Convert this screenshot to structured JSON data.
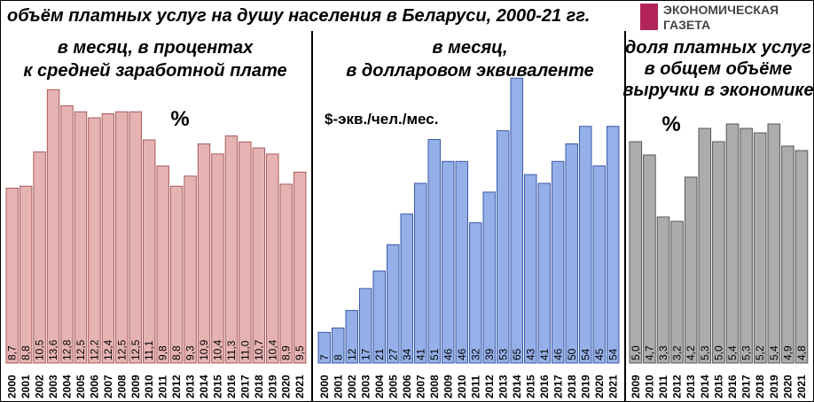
{
  "title": "объём платных услуг на душу населения в Беларуси, 2000-21 гг.",
  "logo": [
    "ЭКОНОМИЧЕСКАЯ",
    "ГАЗЕТА"
  ],
  "chart_data": [
    {
      "type": "bar",
      "subtitle": [
        "в месяц, в процентах",
        "к средней заработной плате"
      ],
      "unit": "%",
      "color": "#e6b3b3",
      "edge": "#a85a5a",
      "categories": [
        "2000",
        "2001",
        "2002",
        "2003",
        "2004",
        "2005",
        "2006",
        "2007",
        "2008",
        "2009",
        "2010",
        "2011",
        "2012",
        "2013",
        "2014",
        "2015",
        "2016",
        "2017",
        "2018",
        "2019",
        "2020",
        "2021"
      ],
      "values": [
        8.7,
        8.8,
        10.5,
        13.6,
        12.8,
        12.5,
        12.2,
        12.4,
        12.5,
        12.5,
        11.1,
        9.8,
        8.8,
        9.3,
        10.9,
        10.4,
        11.3,
        11.0,
        10.7,
        10.4,
        8.9,
        9.5
      ],
      "value_labels": [
        "8,7",
        "8,8",
        "10,5",
        "13,6",
        "12,8",
        "12,5",
        "12,2",
        "12,4",
        "12,5",
        "12,5",
        "11,1",
        "9,8",
        "8,8",
        "9,3",
        "10,9",
        "10,4",
        "11,3",
        "11,0",
        "10,7",
        "10,4",
        "8,9",
        "9,5"
      ]
    },
    {
      "type": "bar",
      "subtitle": [
        "в месяц,",
        "в долларовом эквиваленте"
      ],
      "unit": "$-экв./чел./мес.",
      "color": "#95b0e8",
      "edge": "#3a5aa8",
      "categories": [
        "2000",
        "2001",
        "2002",
        "2003",
        "2004",
        "2005",
        "2006",
        "2007",
        "2008",
        "2009",
        "2010",
        "2011",
        "2012",
        "2013",
        "2014",
        "2015",
        "2016",
        "2017",
        "2018",
        "2019",
        "2020",
        "2021"
      ],
      "values": [
        7,
        8,
        12,
        17,
        21,
        27,
        34,
        41,
        51,
        46,
        46,
        32,
        39,
        53,
        65,
        43,
        41,
        46,
        50,
        54,
        45,
        54
      ]
    },
    {
      "type": "bar",
      "subtitle": [
        "доля платных услуг",
        "в общем объёме",
        "выручки в экономике"
      ],
      "unit": "%",
      "color": "#acacac",
      "edge": "#555555",
      "categories": [
        "2009",
        "2010",
        "2011",
        "2012",
        "2013",
        "2014",
        "2015",
        "2016",
        "2017",
        "2018",
        "2019",
        "2020",
        "2021"
      ],
      "values": [
        5.0,
        4.7,
        3.3,
        3.2,
        4.2,
        5.3,
        5.0,
        5.4,
        5.3,
        5.2,
        5.4,
        4.9,
        4.8
      ],
      "value_labels": [
        "5,0",
        "4,7",
        "3,3",
        "3,2",
        "4,2",
        "5,3",
        "5,0",
        "5,4",
        "5,3",
        "5,2",
        "5,4",
        "4,9",
        "4,8"
      ]
    }
  ]
}
